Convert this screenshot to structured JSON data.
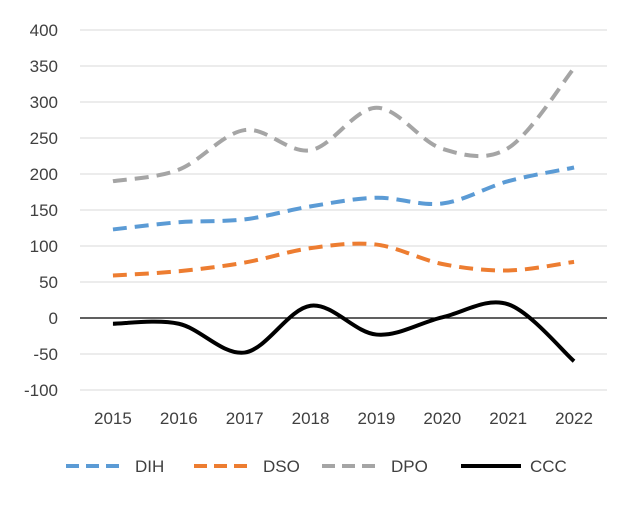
{
  "chart_data": {
    "type": "line",
    "title": "",
    "xlabel": "",
    "ylabel": "",
    "categories": [
      "2015",
      "2016",
      "2017",
      "2018",
      "2019",
      "2020",
      "2021",
      "2022"
    ],
    "ylim": [
      -100,
      400
    ],
    "yticks": [
      400,
      350,
      300,
      250,
      200,
      150,
      100,
      50,
      0,
      -50,
      -100
    ],
    "ytick_labels": [
      "400",
      "350",
      "300",
      "250",
      "200",
      "150",
      "100",
      "50",
      "0",
      "-50",
      "-100"
    ],
    "grid": true,
    "legend_position": "bottom",
    "series": [
      {
        "name": "DIH",
        "color": "#5B9BD5",
        "dash": "dashed",
        "values": [
          123,
          133,
          137,
          155,
          167,
          159,
          190,
          209
        ]
      },
      {
        "name": "DSO",
        "color": "#ED7D31",
        "dash": "dashed",
        "values": [
          59,
          65,
          77,
          97,
          102,
          75,
          66,
          78
        ]
      },
      {
        "name": "DPO",
        "color": "#A5A5A5",
        "dash": "dashed",
        "values": [
          190,
          206,
          261,
          233,
          292,
          235,
          236,
          347
        ]
      },
      {
        "name": "CCC",
        "color": "#000000",
        "dash": "solid",
        "values": [
          -8,
          -8,
          -48,
          17,
          -23,
          1,
          19,
          -60
        ]
      }
    ]
  }
}
